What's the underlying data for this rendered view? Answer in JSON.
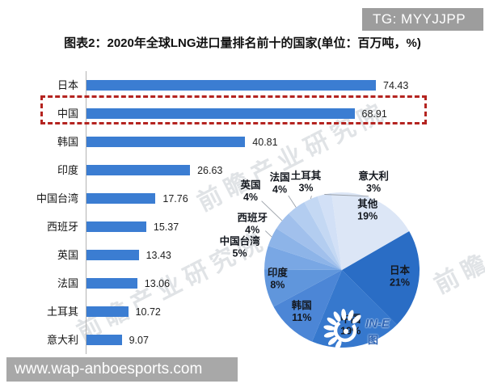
{
  "header": {
    "tg_label": "TG: MYYJJPP"
  },
  "title": "图表2：2020年全球LNG进口量排名前十的国家(单位：百万吨，%)",
  "chart_data": [
    {
      "type": "bar",
      "orientation": "horizontal",
      "title": "2020年全球LNG进口量排名前十的国家",
      "unit": "百万吨",
      "categories": [
        "日本",
        "中国",
        "韩国",
        "印度",
        "中国台湾",
        "西班牙",
        "英国",
        "法国",
        "土耳其",
        "意大利"
      ],
      "values": [
        74.43,
        68.91,
        40.81,
        26.63,
        17.76,
        15.37,
        13.43,
        13.06,
        10.72,
        9.07
      ],
      "xlim": [
        0,
        80
      ],
      "grid": false,
      "highlighted_category": "中国",
      "bar_color": "#3b7dd2",
      "highlight_box_color": "#b42420"
    },
    {
      "type": "pie",
      "unit": "%",
      "labels": [
        "日本",
        "中国",
        "韩国",
        "印度",
        "中国台湾",
        "西班牙",
        "英国",
        "法国",
        "土耳其",
        "意大利",
        "其他"
      ],
      "values": [
        21,
        19,
        11,
        8,
        5,
        4,
        4,
        4,
        3,
        3,
        19
      ],
      "pct_labels": [
        "21%",
        "19%",
        "11%",
        "8%",
        "5%",
        "4%",
        "4%",
        "4%",
        "3%",
        "3%",
        "19%"
      ],
      "start_angle_deg": 60,
      "colors": [
        "#2a6dc5",
        "#3678cd",
        "#4c86d6",
        "#6096dc",
        "#79a7e4",
        "#8db4e8",
        "#a1c0ec",
        "#b3cdf0",
        "#c4d8f3",
        "#d2e0f6",
        "#dce6f6"
      ]
    }
  ],
  "watermarks": {
    "site_url": "www.wap-anboesports.com",
    "diagonal_text": "前瞻产业研究院",
    "logo_text": "IN-E",
    "logo_subtext": "图"
  }
}
